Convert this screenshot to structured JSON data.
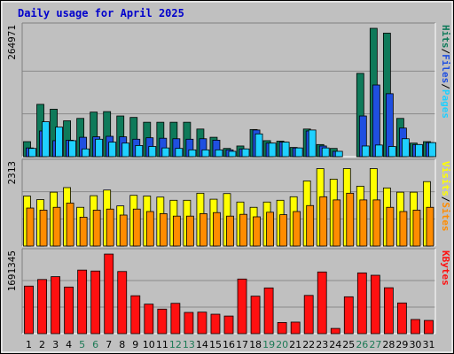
{
  "title": "Daily usage for April 2025",
  "colors": {
    "hits": "#0f7a5a",
    "files": "#1f4fe0",
    "pages": "#1fd0ff",
    "visits": "#ffff00",
    "sites": "#ff8c00",
    "kbytes": "#ff1010",
    "weekend_label": "#1d7a56",
    "title": "#0000cc",
    "panel": "#c0c0c0",
    "gridline": "#8a8a8a"
  },
  "chart_data": [
    {
      "type": "bar",
      "title": "Daily usage for April 2025",
      "panel": "hits-files-pages",
      "ylabel_parts": [
        "Pages",
        "Files",
        "Hits"
      ],
      "ylabel_colors": [
        "#1fd0ff",
        "#1f4fe0",
        "#0f7a5a"
      ],
      "ymax_label": "264971",
      "ylim": [
        0,
        264971
      ],
      "categories": [
        "1",
        "2",
        "3",
        "4",
        "5",
        "6",
        "7",
        "8",
        "9",
        "10",
        "11",
        "12",
        "13",
        "14",
        "15",
        "16",
        "17",
        "18",
        "19",
        "20",
        "21",
        "22",
        "23",
        "24",
        "25",
        "26",
        "27",
        "28",
        "29",
        "30",
        "31"
      ],
      "weekend_days": [
        "5",
        "6",
        "12",
        "13",
        "19",
        "20",
        "26",
        "27"
      ],
      "series": [
        {
          "name": "Hits",
          "values": [
            31000,
            108000,
            98000,
            74000,
            79000,
            92000,
            93000,
            84000,
            81000,
            71000,
            71000,
            71000,
            71000,
            57000,
            40000,
            17000,
            22000,
            56000,
            33000,
            32000,
            19000,
            57000,
            25000,
            17000,
            0,
            172000,
            264971,
            255000,
            79000,
            28000,
            31000
          ]
        },
        {
          "name": "Files",
          "values": [
            18000,
            53000,
            33000,
            34000,
            40000,
            41000,
            42000,
            41000,
            36000,
            39000,
            38000,
            37000,
            36000,
            37000,
            34000,
            14000,
            16000,
            55000,
            28000,
            30000,
            18000,
            53000,
            22000,
            11000,
            0,
            84000,
            148000,
            130000,
            59000,
            25000,
            29000
          ]
        },
        {
          "name": "Pages",
          "values": [
            17000,
            72000,
            61000,
            33000,
            16000,
            36000,
            30000,
            28000,
            23000,
            21000,
            18000,
            17000,
            14000,
            14000,
            14000,
            11000,
            16000,
            47000,
            28000,
            30000,
            18000,
            55000,
            18000,
            11000,
            0,
            22000,
            24000,
            21000,
            37000,
            25000,
            29000
          ]
        }
      ]
    },
    {
      "type": "bar",
      "panel": "visits-sites",
      "ylabel_parts": [
        "Sites",
        "Visits"
      ],
      "ylabel_colors": [
        "#ff8c00",
        "#ffff00"
      ],
      "ymax_label": "2313",
      "ylim": [
        0,
        2313
      ],
      "categories": [
        "1",
        "2",
        "3",
        "4",
        "5",
        "6",
        "7",
        "8",
        "9",
        "10",
        "11",
        "12",
        "13",
        "14",
        "15",
        "16",
        "17",
        "18",
        "19",
        "20",
        "21",
        "22",
        "23",
        "24",
        "25",
        "26",
        "27",
        "28",
        "29",
        "30",
        "31"
      ],
      "series": [
        {
          "name": "Visits",
          "values": [
            1420,
            1320,
            1530,
            1660,
            1100,
            1430,
            1590,
            1140,
            1440,
            1420,
            1390,
            1300,
            1300,
            1500,
            1330,
            1490,
            1250,
            1100,
            1250,
            1300,
            1400,
            1850,
            2200,
            1900,
            2200,
            1700,
            2200,
            1650,
            1530,
            1530,
            1830
          ]
        },
        {
          "name": "Sites",
          "values": [
            1080,
            1020,
            1100,
            1220,
            820,
            1020,
            1050,
            880,
            1050,
            980,
            920,
            850,
            850,
            920,
            950,
            850,
            900,
            830,
            960,
            890,
            980,
            1150,
            1400,
            1310,
            1500,
            1310,
            1310,
            1100,
            980,
            1020,
            1100
          ]
        }
      ]
    },
    {
      "type": "bar",
      "panel": "kbytes",
      "ylabel_parts": [
        "KBytes"
      ],
      "ylabel_colors": [
        "#ff1010"
      ],
      "ymax_label": "1691345",
      "ylim": [
        0,
        1691345
      ],
      "categories": [
        "1",
        "2",
        "3",
        "4",
        "5",
        "6",
        "7",
        "8",
        "9",
        "10",
        "11",
        "12",
        "13",
        "14",
        "15",
        "16",
        "17",
        "18",
        "19",
        "20",
        "21",
        "22",
        "23",
        "24",
        "25",
        "26",
        "27",
        "28",
        "29",
        "30",
        "31"
      ],
      "series": [
        {
          "name": "KBytes",
          "values": [
            1010000,
            1150000,
            1210000,
            990000,
            1350000,
            1330000,
            1690000,
            1320000,
            805000,
            627000,
            521000,
            644000,
            451000,
            457000,
            413000,
            374000,
            1160000,
            796000,
            971000,
            237000,
            245000,
            812000,
            1310000,
            111000,
            783000,
            1290000,
            1240000,
            975000,
            652000,
            301000,
            281000
          ]
        }
      ]
    }
  ]
}
